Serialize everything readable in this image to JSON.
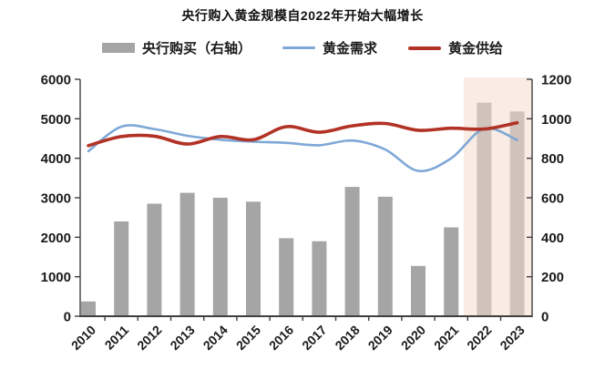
{
  "title": "央行购入黄金规模自2022年开始大幅增长",
  "legend": [
    {
      "label": "央行购买（右轴）",
      "type": "bar",
      "color": "#a5a5a5"
    },
    {
      "label": "黄金需求",
      "type": "line",
      "color": "#7fa8d6"
    },
    {
      "label": "黄金供给",
      "type": "line",
      "color": "#b23226"
    }
  ],
  "chart_data": {
    "type": "bar+line combo",
    "title": "央行购入黄金规模自2022年开始大幅增长",
    "categories": [
      "2010",
      "2011",
      "2012",
      "2013",
      "2014",
      "2015",
      "2016",
      "2017",
      "2018",
      "2019",
      "2020",
      "2021",
      "2022",
      "2023"
    ],
    "series": [
      {
        "name": "央行购买（右轴）",
        "type": "bar",
        "axis": "right",
        "color": "#a5a5a5",
        "values": [
          75,
          480,
          570,
          625,
          600,
          580,
          395,
          380,
          655,
          605,
          255,
          450,
          1082,
          1037
        ]
      },
      {
        "name": "黄金需求",
        "type": "line",
        "axis": "left",
        "color": "#7fa8d6",
        "width": 2.6,
        "values": [
          4180,
          4800,
          4740,
          4570,
          4470,
          4420,
          4390,
          4330,
          4450,
          4220,
          3680,
          4000,
          4750,
          4460
        ]
      },
      {
        "name": "黄金供给",
        "type": "line",
        "axis": "left",
        "color": "#b23226",
        "width": 3.6,
        "values": [
          4320,
          4550,
          4560,
          4360,
          4550,
          4470,
          4800,
          4660,
          4820,
          4880,
          4710,
          4760,
          4740,
          4900
        ]
      }
    ],
    "left_axis": {
      "min": 0,
      "max": 6000,
      "step": 1000,
      "ticks": [
        "0",
        "1000",
        "2000",
        "3000",
        "4000",
        "5000",
        "6000"
      ]
    },
    "right_axis": {
      "min": 0,
      "max": 1200,
      "step": 200,
      "ticks": [
        "0",
        "200",
        "400",
        "600",
        "800",
        "1000",
        "1200"
      ]
    },
    "highlight": {
      "from_category": "2022",
      "to_category": "2023",
      "color": "rgba(244,221,205,0.55)"
    },
    "grid": false,
    "legend_position": "top-center",
    "axis_color": "#3f3f3f"
  }
}
